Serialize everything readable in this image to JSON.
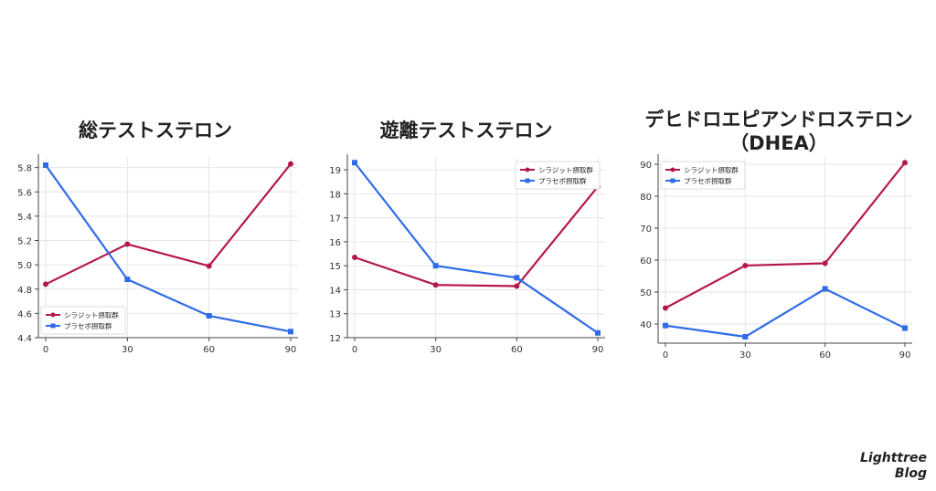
{
  "brand": {
    "line1": "Lighttree",
    "line2": "Blog"
  },
  "colors": {
    "series_a": "#B5174B",
    "series_b": "#2F6BE8",
    "axis": "#444444",
    "grid": "#e6e6e6"
  },
  "chart_data": [
    {
      "type": "line",
      "title_lines": [
        "総テストステロン"
      ],
      "x": [
        0,
        30,
        60,
        90
      ],
      "ylim": [
        4.4,
        5.88
      ],
      "yticks": [
        4.4,
        4.6,
        4.8,
        5.0,
        5.2,
        5.4,
        5.6,
        5.8
      ],
      "ytick_decimals": 1,
      "grid": true,
      "legend": "bottom-left",
      "series": [
        {
          "name": "シラジット摂取群",
          "marker": "circle",
          "values": [
            4.84,
            5.17,
            4.99,
            5.83
          ]
        },
        {
          "name": "プラセボ摂取群",
          "marker": "square",
          "values": [
            5.82,
            4.88,
            4.58,
            4.45
          ]
        }
      ]
    },
    {
      "type": "line",
      "title_lines": [
        "遊離テストステロン"
      ],
      "x": [
        0,
        30,
        60,
        90
      ],
      "ylim": [
        12,
        19.5
      ],
      "yticks": [
        12,
        13,
        14,
        15,
        16,
        17,
        18,
        19
      ],
      "ytick_decimals": 0,
      "grid": true,
      "legend": "top-right",
      "series": [
        {
          "name": "シラジット摂取群",
          "marker": "circle",
          "values": [
            15.35,
            14.2,
            14.15,
            18.3
          ]
        },
        {
          "name": "プラセボ摂取群",
          "marker": "square",
          "values": [
            19.3,
            15.0,
            14.5,
            12.2
          ]
        }
      ]
    },
    {
      "type": "line",
      "title_lines": [
        "デヒドロエピアンドロステロン",
        "（DHEA）"
      ],
      "x": [
        0,
        30,
        60,
        90
      ],
      "ylim": [
        34,
        92
      ],
      "yticks": [
        40,
        50,
        60,
        70,
        80,
        90
      ],
      "ytick_decimals": 0,
      "grid": true,
      "legend": "top-left",
      "series": [
        {
          "name": "シラジット摂取群",
          "marker": "circle",
          "values": [
            45,
            58.3,
            59,
            90.5
          ]
        },
        {
          "name": "プラセボ摂取群",
          "marker": "square",
          "values": [
            39.5,
            36,
            51,
            38.7
          ]
        }
      ]
    }
  ]
}
